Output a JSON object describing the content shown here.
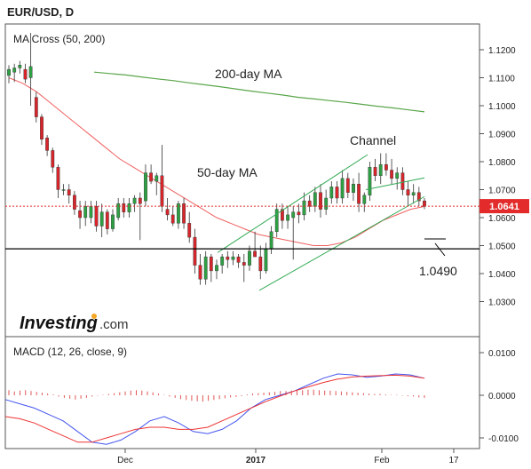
{
  "header": {
    "symbol": "EUR/USD, D"
  },
  "main_pane": {
    "indicator_label": "MA Cross (50, 200)",
    "logo": {
      "text_main": "Investing",
      "text_suffix": ".com",
      "dot_color": "#f5a623"
    },
    "annotations": {
      "ma200": "200-day MA",
      "ma50": "50-day MA",
      "channel": "Channel",
      "level": "1.0490"
    },
    "price_label": {
      "value": "1.0641",
      "color": "#e32b2b"
    },
    "y_ticks": [
      "1.1200",
      "1.1100",
      "1.1000",
      "1.0900",
      "1.0800",
      "1.0700",
      "1.0600",
      "1.0500",
      "1.0400",
      "1.0300"
    ],
    "colors": {
      "up": "#2ea043",
      "down": "#d6262b",
      "ma50": "#f06060",
      "ma200": "#5aa64a",
      "channel": "#33aa55",
      "support": "#000000"
    }
  },
  "macd_pane": {
    "indicator_label": "MACD (12, 26, close, 9)",
    "y_ticks": [
      "0.0100",
      "0.0000",
      "-0.0100"
    ],
    "colors": {
      "macd": "#4455ee",
      "signal": "#ee3333",
      "histogram": "#e05555"
    }
  },
  "x_axis": {
    "labels": [
      "Dec",
      "2017",
      "Feb",
      "17"
    ]
  },
  "chart_data": {
    "type": "candlestick",
    "title": "EUR/USD, D",
    "x_ticks": [
      "Dec",
      "2017",
      "Feb",
      "17"
    ],
    "ylim": [
      1.025,
      1.128
    ],
    "current_price": 1.0641,
    "horizontal_level": 1.049,
    "candles": [
      [
        1.1108,
        1.1145,
        1.108,
        1.113
      ],
      [
        1.112,
        1.115,
        1.1085,
        1.1135
      ],
      [
        1.1135,
        1.116,
        1.1115,
        1.1145
      ],
      [
        1.113,
        1.115,
        1.108,
        1.1095
      ],
      [
        1.11,
        1.126,
        1.1,
        1.114
      ],
      [
        1.103,
        1.105,
        1.094,
        1.096
      ],
      [
        1.096,
        1.097,
        1.086,
        1.088
      ],
      [
        1.0885,
        1.0895,
        1.082,
        1.084
      ],
      [
        1.084,
        1.085,
        1.076,
        1.078
      ],
      [
        1.078,
        1.079,
        1.067,
        1.07
      ],
      [
        1.07,
        1.072,
        1.068,
        1.07
      ],
      [
        1.07,
        1.072,
        1.065,
        1.068
      ],
      [
        1.068,
        1.0695,
        1.061,
        1.063
      ],
      [
        1.0625,
        1.066,
        1.056,
        1.06
      ],
      [
        1.06,
        1.066,
        1.057,
        1.064
      ],
      [
        1.06,
        1.066,
        1.058,
        1.064
      ],
      [
        1.064,
        1.066,
        1.055,
        1.057
      ],
      [
        1.057,
        1.065,
        1.053,
        1.062
      ],
      [
        1.062,
        1.063,
        1.054,
        1.056
      ],
      [
        1.056,
        1.063,
        1.055,
        1.061
      ],
      [
        1.06,
        1.067,
        1.059,
        1.065
      ],
      [
        1.065,
        1.067,
        1.06,
        1.062
      ],
      [
        1.062,
        1.067,
        1.06,
        1.065
      ],
      [
        1.065,
        1.068,
        1.062,
        1.067
      ],
      [
        1.067,
        1.069,
        1.052,
        1.065
      ],
      [
        1.066,
        1.079,
        1.064,
        1.076
      ],
      [
        1.076,
        1.079,
        1.072,
        1.073
      ],
      [
        1.073,
        1.076,
        1.068,
        1.075
      ],
      [
        1.075,
        1.086,
        1.062,
        1.064
      ],
      [
        1.063,
        1.067,
        1.059,
        1.061
      ],
      [
        1.061,
        1.064,
        1.057,
        1.058
      ],
      [
        1.058,
        1.066,
        1.056,
        1.065
      ],
      [
        1.065,
        1.067,
        1.056,
        1.058
      ],
      [
        1.058,
        1.062,
        1.051,
        1.053
      ],
      [
        1.053,
        1.056,
        1.04,
        1.043
      ],
      [
        1.043,
        1.047,
        1.036,
        1.038
      ],
      [
        1.038,
        1.048,
        1.036,
        1.046
      ],
      [
        1.046,
        1.047,
        1.037,
        1.041
      ],
      [
        1.041,
        1.045,
        1.038,
        1.043
      ],
      [
        1.043,
        1.047,
        1.04,
        1.046
      ],
      [
        1.046,
        1.048,
        1.042,
        1.045
      ],
      [
        1.045,
        1.048,
        1.043,
        1.046
      ],
      [
        1.046,
        1.047,
        1.042,
        1.044
      ],
      [
        1.044,
        1.047,
        1.037,
        1.043
      ],
      [
        1.043,
        1.05,
        1.041,
        1.048
      ],
      [
        1.048,
        1.055,
        1.046,
        1.046
      ],
      [
        1.046,
        1.05,
        1.038,
        1.041
      ],
      [
        1.041,
        1.051,
        1.04,
        1.049
      ],
      [
        1.049,
        1.057,
        1.047,
        1.055
      ],
      [
        1.055,
        1.065,
        1.053,
        1.063
      ],
      [
        1.063,
        1.065,
        1.056,
        1.059
      ],
      [
        1.059,
        1.064,
        1.056,
        1.061
      ],
      [
        1.06,
        1.064,
        1.045,
        1.062
      ],
      [
        1.062,
        1.065,
        1.058,
        1.061
      ],
      [
        1.061,
        1.069,
        1.059,
        1.066
      ],
      [
        1.066,
        1.068,
        1.062,
        1.064
      ],
      [
        1.064,
        1.071,
        1.062,
        1.069
      ],
      [
        1.069,
        1.072,
        1.06,
        1.063
      ],
      [
        1.063,
        1.07,
        1.061,
        1.067
      ],
      [
        1.067,
        1.073,
        1.065,
        1.071
      ],
      [
        1.071,
        1.073,
        1.065,
        1.067
      ],
      [
        1.067,
        1.077,
        1.065,
        1.074
      ],
      [
        1.074,
        1.076,
        1.067,
        1.069
      ],
      [
        1.069,
        1.074,
        1.066,
        1.072
      ],
      [
        1.072,
        1.076,
        1.062,
        1.065
      ],
      [
        1.065,
        1.069,
        1.062,
        1.068
      ],
      [
        1.068,
        1.08,
        1.066,
        1.078
      ],
      [
        1.078,
        1.081,
        1.073,
        1.075
      ],
      [
        1.075,
        1.083,
        1.072,
        1.079
      ],
      [
        1.079,
        1.083,
        1.075,
        1.077
      ],
      [
        1.077,
        1.081,
        1.072,
        1.074
      ],
      [
        1.074,
        1.078,
        1.07,
        1.076
      ],
      [
        1.076,
        1.078,
        1.068,
        1.07
      ],
      [
        1.07,
        1.073,
        1.064,
        1.068
      ],
      [
        1.068,
        1.072,
        1.065,
        1.069
      ],
      [
        1.069,
        1.071,
        1.064,
        1.066
      ],
      [
        1.066,
        1.067,
        1.063,
        1.0641
      ]
    ],
    "ma50": [
      1.11,
      1.108,
      1.105,
      1.101,
      1.097,
      1.093,
      1.089,
      1.085,
      1.081,
      1.078,
      1.075,
      1.072,
      1.069,
      1.066,
      1.063,
      1.06,
      1.058,
      1.056,
      1.054,
      1.053,
      1.052,
      1.051,
      1.05,
      1.05,
      1.051,
      1.053,
      1.056,
      1.059,
      1.061,
      1.063,
      1.064
    ],
    "ma200": [
      1.112,
      1.1115,
      1.111,
      1.1103,
      1.1096,
      1.109,
      1.1082,
      1.1075,
      1.1068,
      1.106,
      1.1052,
      1.1045,
      1.1038,
      1.103,
      1.1024,
      1.1018,
      1.1012,
      1.1005,
      1.0998,
      1.0992,
      1.0985,
      1.0978
    ],
    "channel_upper": [
      [
        1.0475,
        1.0825
      ],
      [
        1.07,
        1.0742
      ]
    ],
    "channel_lower": [
      [
        1.034,
        1.0675
      ],
      [
        1.049,
        1.058
      ]
    ],
    "macd_histogram": [
      0.0012,
      0.0009,
      0.0011,
      0.0012,
      0.001,
      0.0008,
      0.0006,
      0.0004,
      0.0002,
      -0.0003,
      -0.0006,
      -0.0008,
      -0.001,
      -0.0008,
      -0.0006,
      -0.0003,
      -0.0001,
      0.0001,
      0.0003,
      0.0005,
      0.0007,
      0.0009,
      0.0011,
      0.0012,
      0.0011,
      0.0009,
      0.0007,
      0.0004,
      0.0001,
      -0.0003,
      -0.0006,
      -0.0009,
      -0.0011,
      -0.0013,
      -0.0014,
      -0.0015,
      -0.0013,
      -0.0011,
      -0.0009,
      -0.0007,
      -0.0005,
      -0.0004,
      -0.0002,
      0.0002,
      0.0004,
      0.0005,
      0.0006,
      0.0007,
      0.0008,
      0.001,
      0.001,
      0.0011,
      0.0012,
      0.0012,
      0.0013,
      0.0013,
      0.0012,
      0.0011,
      0.0011,
      0.001,
      0.0009,
      0.0008,
      0.0007,
      0.0006,
      0.0005,
      0.0004,
      0.0003,
      0.0003,
      0.0002,
      0.0001,
      0.0001,
      -0.0001,
      -0.0002,
      -0.0003,
      -0.0005,
      -0.0006
    ],
    "macd_line": [
      -0.001,
      -0.002,
      -0.003,
      -0.0045,
      -0.006,
      -0.0085,
      -0.011,
      -0.0115,
      -0.0105,
      -0.0085,
      -0.006,
      -0.005,
      -0.0065,
      -0.0085,
      -0.009,
      -0.008,
      -0.006,
      -0.003,
      -0.001,
      0.0,
      0.001,
      0.0025,
      0.004,
      0.005,
      0.0048,
      0.0042,
      0.0045,
      0.005,
      0.0048,
      0.004
    ],
    "signal_line": [
      -0.005,
      -0.0055,
      -0.0065,
      -0.008,
      -0.0095,
      -0.011,
      -0.011,
      -0.01,
      -0.009,
      -0.008,
      -0.0075,
      -0.0075,
      -0.008,
      -0.008,
      -0.0075,
      -0.006,
      -0.0045,
      -0.003,
      -0.0015,
      -0.0002,
      0.001,
      0.002,
      0.003,
      0.0038,
      0.0043,
      0.0045,
      0.0046,
      0.0047,
      0.0045,
      0.004
    ],
    "macd_ylim": [
      -0.012,
      0.012
    ]
  }
}
